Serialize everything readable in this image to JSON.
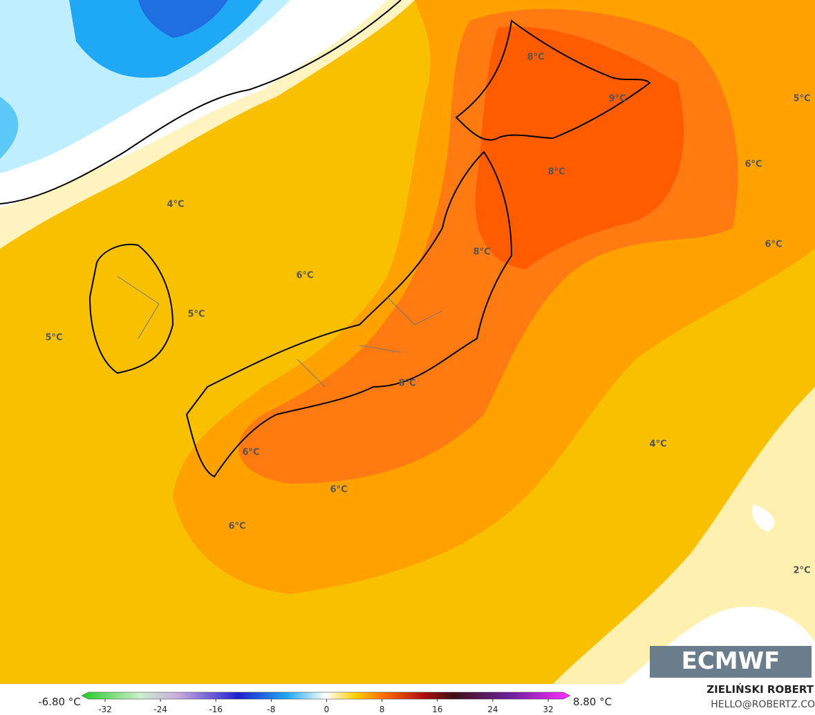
{
  "map_labels": [
    "8°C",
    "9°C",
    "5°C",
    "8°C",
    "6°C",
    "4°C",
    "6°C",
    "8°C",
    "6°C",
    "5°C",
    "5°C",
    "8°C",
    "4°C",
    "6°C",
    "6°C",
    "6°C",
    "2°C"
  ],
  "colorbar": {
    "min_label": "-6.80 °C",
    "max_label": "8.80 °C",
    "ticks": [
      -32,
      -24,
      -16,
      -8,
      0,
      8,
      16,
      24,
      32
    ]
  },
  "logo": "ECMWF",
  "credits": {
    "name": "ZIELIŃSKI ROBERT",
    "email": "HELLO@ROBERTZ.CO"
  }
}
